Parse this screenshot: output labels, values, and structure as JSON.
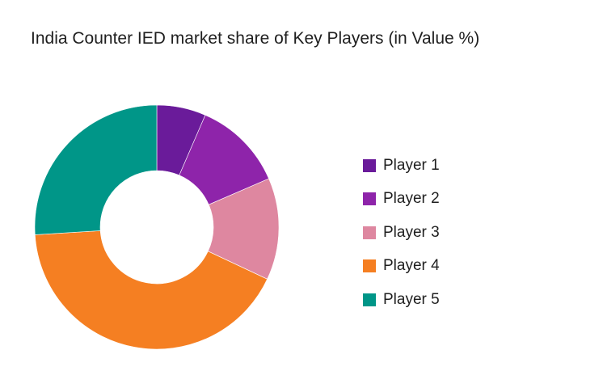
{
  "chart_data": {
    "type": "pie",
    "variant": "donut",
    "title": "India Counter IED market share of Key Players (in Value %)",
    "categories": [
      "Player 1",
      "Player 2",
      "Player 3",
      "Player 4",
      "Player 5"
    ],
    "values": [
      6.5,
      12,
      13.5,
      42,
      26
    ],
    "colors": [
      "#6a1b9a",
      "#8e24aa",
      "#de87a0",
      "#f57f22",
      "#009688"
    ],
    "legend_position": "right",
    "start_angle": "top, clockwise"
  },
  "title": "India Counter IED market share of Key Players (in Value %)",
  "legend": [
    {
      "label": "Player 1",
      "color": "#6a1b9a"
    },
    {
      "label": "Player 2",
      "color": "#8e24aa"
    },
    {
      "label": "Player 3",
      "color": "#de87a0"
    },
    {
      "label": "Player 4",
      "color": "#f57f22"
    },
    {
      "label": "Player 5",
      "color": "#009688"
    }
  ]
}
